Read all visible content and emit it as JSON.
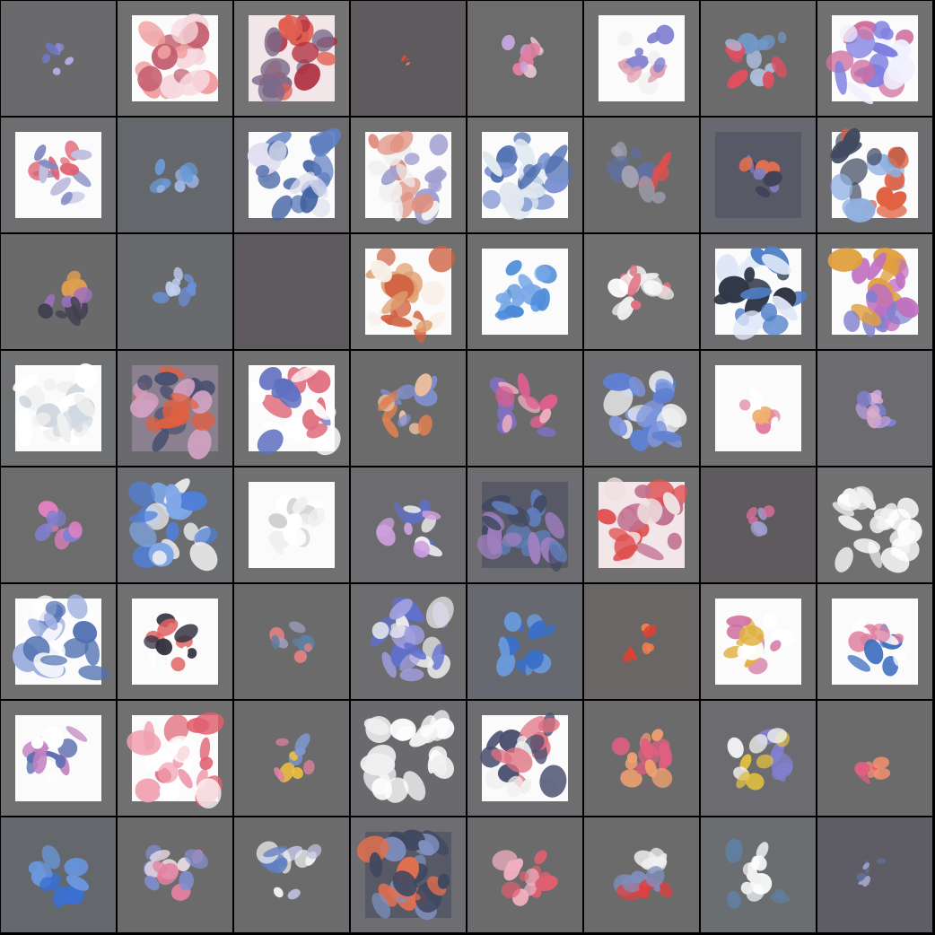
{
  "grid": {
    "rows": 8,
    "cols": 8,
    "border_color": "#000000",
    "cells": [
      {
        "bg": "#6a6a6c",
        "panel": "none",
        "blob": "tiny",
        "palette": [
          "#8a8fd8",
          "#b9b3e8",
          "#6f78c8"
        ]
      },
      {
        "bg": "#707070",
        "panel": "white",
        "blob": "large",
        "palette": [
          "#f0a0a0",
          "#c46070",
          "#f7d9e0"
        ]
      },
      {
        "bg": "#737373",
        "panel": "pink",
        "blob": "large",
        "palette": [
          "#e06050",
          "#b03040",
          "#7a6a8a"
        ]
      },
      {
        "bg": "#5e5a5e",
        "panel": "none",
        "blob": "dot",
        "palette": [
          "#e04a30",
          "#f09070"
        ]
      },
      {
        "bg": "#6c6c6c",
        "panel": "none",
        "blob": "small",
        "palette": [
          "#f0c8d8",
          "#e080a0",
          "#c8a8e0"
        ]
      },
      {
        "bg": "#707070",
        "panel": "white",
        "blob": "medium",
        "palette": [
          "#8080d0",
          "#e0a0b0",
          "#f0f0f0"
        ]
      },
      {
        "bg": "#6b6b6c",
        "panel": "none",
        "blob": "medium",
        "palette": [
          "#7098c8",
          "#e05060",
          "#b0c0e0"
        ]
      },
      {
        "bg": "#707070",
        "panel": "white",
        "blob": "large",
        "palette": [
          "#8080e0",
          "#d070a0",
          "#f0f0ff"
        ]
      },
      {
        "bg": "#6e6e70",
        "panel": "white",
        "blob": "medium",
        "palette": [
          "#8088c0",
          "#e06070",
          "#c0c0e0"
        ]
      },
      {
        "bg": "#64686c",
        "panel": "none",
        "blob": "small",
        "palette": [
          "#6a9ad8",
          "#a0b8e8"
        ]
      },
      {
        "bg": "#6c6c70",
        "panel": "white",
        "blob": "large",
        "palette": [
          "#6080c0",
          "#4060a0",
          "#e0e0f0"
        ]
      },
      {
        "bg": "#707070",
        "panel": "white",
        "blob": "large",
        "palette": [
          "#a0a0d0",
          "#e09080",
          "#f0f0f0"
        ]
      },
      {
        "bg": "#6f6f70",
        "panel": "white",
        "blob": "large",
        "palette": [
          "#5070b0",
          "#7890d0",
          "#e0e8f0"
        ]
      },
      {
        "bg": "#6b6b6b",
        "panel": "none",
        "blob": "medium",
        "palette": [
          "#6070a0",
          "#a0a0b0",
          "#e05050"
        ]
      },
      {
        "bg": "#686870",
        "panel": "dark",
        "blob": "small",
        "palette": [
          "#40405a",
          "#8080c0",
          "#e07050"
        ]
      },
      {
        "bg": "#6d6d70",
        "panel": "white",
        "blob": "large",
        "palette": [
          "#404a60",
          "#90b0e0",
          "#e06040"
        ]
      },
      {
        "bg": "#6a6a6a",
        "panel": "none",
        "blob": "medium",
        "palette": [
          "#404050",
          "#e0a050",
          "#a070c0"
        ]
      },
      {
        "bg": "#686a6e",
        "panel": "none",
        "blob": "small",
        "palette": [
          "#6a90d8",
          "#c0d0f0"
        ]
      },
      {
        "bg": "#5e5a60",
        "panel": "none",
        "blob": "none",
        "palette": [
          "#5e5a60"
        ]
      },
      {
        "bg": "#707070",
        "panel": "white",
        "blob": "large",
        "palette": [
          "#e0a070",
          "#d06040",
          "#f8f0e8"
        ]
      },
      {
        "bg": "#6e6e70",
        "panel": "white",
        "blob": "medium",
        "palette": [
          "#4a8ad8",
          "#7aa8e8"
        ]
      },
      {
        "bg": "#707070",
        "panel": "none",
        "blob": "medium",
        "palette": [
          "#f0f0f0",
          "#e07080",
          "#ffffff"
        ]
      },
      {
        "bg": "#6d6d70",
        "panel": "white",
        "blob": "large",
        "palette": [
          "#5080c8",
          "#303848",
          "#e0e8f8"
        ]
      },
      {
        "bg": "#707070",
        "panel": "white",
        "blob": "large",
        "palette": [
          "#c070c0",
          "#e0a040",
          "#8080d0"
        ]
      },
      {
        "bg": "#6f7072",
        "panel": "white",
        "blob": "large",
        "palette": [
          "#f0f0f0",
          "#ffffff",
          "#d0d8e0"
        ]
      },
      {
        "bg": "#6a6a6c",
        "panel": "mixed",
        "blob": "large",
        "palette": [
          "#e06040",
          "#4a5070",
          "#d0a0c0"
        ]
      },
      {
        "bg": "#707070",
        "panel": "white",
        "blob": "large",
        "palette": [
          "#ffffff",
          "#e07080",
          "#6070c0"
        ]
      },
      {
        "bg": "#6b6b6b",
        "panel": "none",
        "blob": "medium",
        "palette": [
          "#e08050",
          "#8090d0",
          "#f0c0a0"
        ]
      },
      {
        "bg": "#6b6b6b",
        "panel": "none",
        "blob": "medium",
        "palette": [
          "#e06090",
          "#8070c0",
          "#f0b0c0"
        ]
      },
      {
        "bg": "#6e6e70",
        "panel": "none",
        "blob": "large",
        "palette": [
          "#6080d0",
          "#8098e0",
          "#f0f0f0"
        ]
      },
      {
        "bg": "#707070",
        "panel": "white",
        "blob": "small",
        "palette": [
          "#e080a0",
          "#f0b070",
          "#ffffff"
        ]
      },
      {
        "bg": "#6c6c70",
        "panel": "none",
        "blob": "small",
        "palette": [
          "#e0b0d0",
          "#8080d0",
          "#c0a0e0"
        ]
      },
      {
        "bg": "#6c6c6c",
        "panel": "none",
        "blob": "small",
        "palette": [
          "#e080c0",
          "#8080d0"
        ]
      },
      {
        "bg": "#6b6d70",
        "panel": "none",
        "blob": "large",
        "palette": [
          "#5080d8",
          "#80a8e8",
          "#f0f0f0"
        ]
      },
      {
        "bg": "#707070",
        "panel": "white",
        "blob": "medium",
        "palette": [
          "#ffffff",
          "#f0f0f0",
          "#d0d0d0"
        ]
      },
      {
        "bg": "#6c6c70",
        "panel": "none",
        "blob": "medium",
        "palette": [
          "#6070c0",
          "#d0a0e0",
          "#f0f0f0"
        ]
      },
      {
        "bg": "#6e6e72",
        "panel": "dark",
        "blob": "large",
        "palette": [
          "#6080c0",
          "#a080c0",
          "#404860"
        ]
      },
      {
        "bg": "#707070",
        "panel": "pink",
        "blob": "large",
        "palette": [
          "#e05050",
          "#c07090",
          "#f0e0e0"
        ]
      },
      {
        "bg": "#5e5a5e",
        "panel": "none",
        "blob": "tiny",
        "palette": [
          "#e070a0",
          "#a0a0d0"
        ]
      },
      {
        "bg": "#707070",
        "panel": "none",
        "blob": "large",
        "palette": [
          "#ffffff",
          "#f0f0f0"
        ]
      },
      {
        "bg": "#707070",
        "panel": "white",
        "blob": "large",
        "palette": [
          "#5070b0",
          "#a0b0e0",
          "#ffffff"
        ]
      },
      {
        "bg": "#707070",
        "panel": "white",
        "blob": "medium",
        "palette": [
          "#303040",
          "#e06060",
          "#ffffff"
        ]
      },
      {
        "bg": "#6b6b6b",
        "panel": "none",
        "blob": "small",
        "palette": [
          "#6080a0",
          "#e08080",
          "#a0a0c0"
        ]
      },
      {
        "bg": "#6d6d70",
        "panel": "none",
        "blob": "large",
        "palette": [
          "#6070d0",
          "#a0a0e0",
          "#f0f0f0"
        ]
      },
      {
        "bg": "#666a70",
        "panel": "none",
        "blob": "medium",
        "palette": [
          "#3a70c8",
          "#6a98d8"
        ]
      },
      {
        "bg": "#6a6666",
        "panel": "none",
        "blob": "tiny",
        "palette": [
          "#e04030",
          "#f08050"
        ]
      },
      {
        "bg": "#707070",
        "panel": "white",
        "blob": "medium",
        "palette": [
          "#e0b040",
          "#d070a0",
          "#ffffff"
        ]
      },
      {
        "bg": "#707070",
        "panel": "white",
        "blob": "medium",
        "palette": [
          "#4070c0",
          "#e080a0",
          "#ffffff"
        ]
      },
      {
        "bg": "#707070",
        "panel": "white",
        "blob": "medium",
        "palette": [
          "#6070b0",
          "#c080c0",
          "#ffffff"
        ]
      },
      {
        "bg": "#707070",
        "panel": "white",
        "blob": "large",
        "palette": [
          "#e06070",
          "#f0a0b0",
          "#ffffff"
        ]
      },
      {
        "bg": "#6b6b6b",
        "panel": "none",
        "blob": "small",
        "palette": [
          "#f0c040",
          "#e080a0",
          "#8098d0"
        ]
      },
      {
        "bg": "#6a6a6e",
        "panel": "none",
        "blob": "large",
        "palette": [
          "#ffffff",
          "#f0f0f0"
        ]
      },
      {
        "bg": "#6e6e70",
        "panel": "white",
        "blob": "large",
        "palette": [
          "#4a5070",
          "#e07080",
          "#f0f0f0"
        ]
      },
      {
        "bg": "#6b6b6b",
        "panel": "none",
        "blob": "medium",
        "palette": [
          "#e06080",
          "#f0a070"
        ]
      },
      {
        "bg": "#6c6c70",
        "panel": "none",
        "blob": "medium",
        "palette": [
          "#8080d0",
          "#e0c040",
          "#f0f0f0"
        ]
      },
      {
        "bg": "#6b6b6b",
        "panel": "none",
        "blob": "small",
        "palette": [
          "#e06080",
          "#f09070"
        ]
      },
      {
        "bg": "#64686c",
        "panel": "none",
        "blob": "medium",
        "palette": [
          "#3a70d0",
          "#6a98e0"
        ]
      },
      {
        "bg": "#6b6b6b",
        "panel": "none",
        "blob": "medium",
        "palette": [
          "#e080a0",
          "#8090d0",
          "#f0e0e8"
        ]
      },
      {
        "bg": "#6b6b6b",
        "panel": "none",
        "blob": "medium",
        "palette": [
          "#6080c0",
          "#f0f0f0",
          "#c0c0e0"
        ]
      },
      {
        "bg": "#6e6e72",
        "panel": "dark",
        "blob": "large",
        "palette": [
          "#404860",
          "#8090c0",
          "#e07050"
        ]
      },
      {
        "bg": "#6b6b6b",
        "panel": "none",
        "blob": "medium",
        "palette": [
          "#e06070",
          "#f0b0c0"
        ]
      },
      {
        "bg": "#6b6b6b",
        "panel": "none",
        "blob": "medium",
        "palette": [
          "#e04040",
          "#8090c0",
          "#f0f0f0"
        ]
      },
      {
        "bg": "#6a6e70",
        "panel": "none",
        "blob": "medium",
        "palette": [
          "#ffffff",
          "#f0f0f0",
          "#6080a0"
        ]
      },
      {
        "bg": "#5e5c64",
        "panel": "none",
        "blob": "tiny",
        "palette": [
          "#6070a0",
          "#a0a0c0"
        ]
      }
    ]
  }
}
